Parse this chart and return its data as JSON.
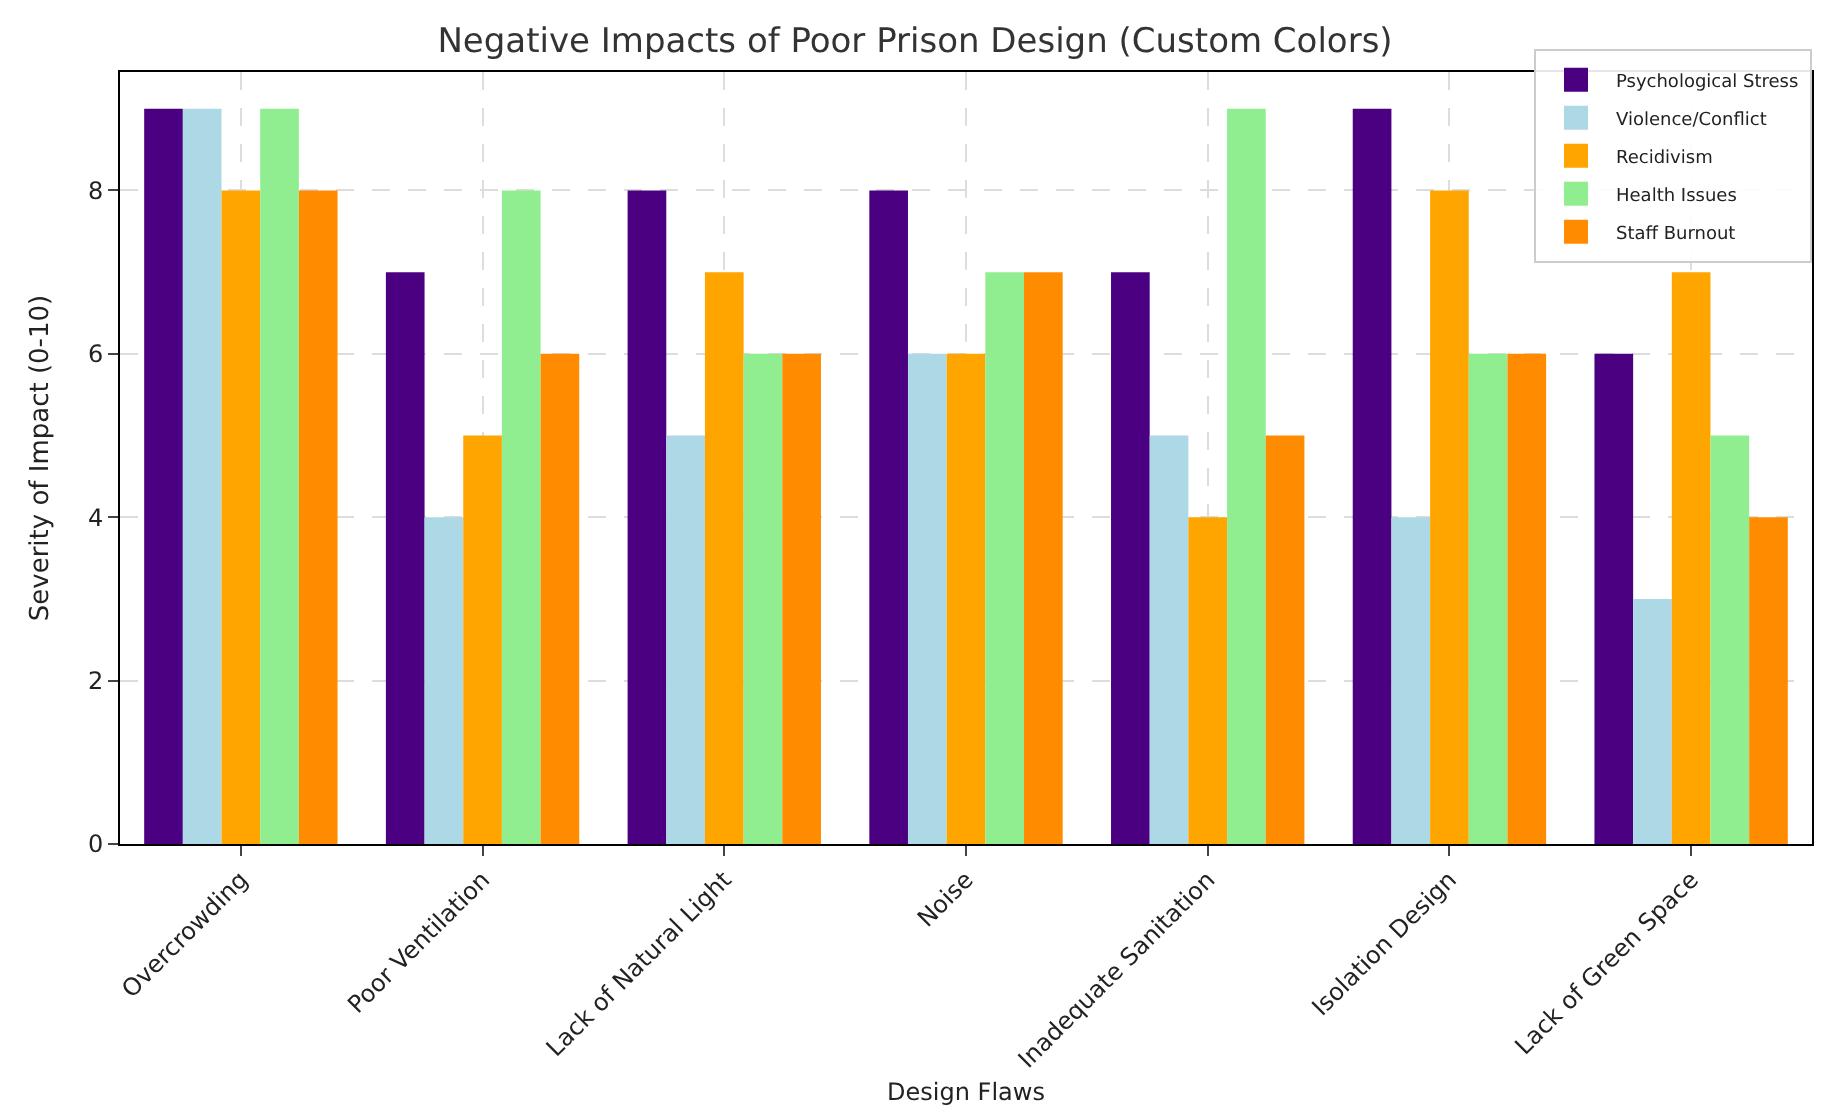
{
  "chart_data": {
    "type": "bar",
    "title": "Negative Impacts of Poor Prison Design (Custom Colors)",
    "xlabel": "Design Flaws",
    "ylabel": "Severity of Impact (0-10)",
    "categories": [
      "Overcrowding",
      "Poor Ventilation",
      "Lack of Natural Light",
      "Noise",
      "Inadequate Sanitation",
      "Isolation Design",
      "Lack of Green Space"
    ],
    "series": [
      {
        "name": "Psychological Stress",
        "color": "#4b0082",
        "values": [
          9,
          7,
          8,
          8,
          7,
          9,
          6
        ]
      },
      {
        "name": "Violence/Conflict",
        "color": "#add8e6",
        "values": [
          9,
          4,
          5,
          6,
          5,
          4,
          3
        ]
      },
      {
        "name": "Recidivism",
        "color": "#ffa500",
        "values": [
          8,
          5,
          7,
          6,
          4,
          8,
          7
        ]
      },
      {
        "name": "Health Issues",
        "color": "#90ee90",
        "values": [
          9,
          8,
          6,
          7,
          9,
          6,
          5
        ]
      },
      {
        "name": "Staff Burnout",
        "color": "#ff8c00",
        "values": [
          8,
          6,
          6,
          7,
          5,
          6,
          4
        ]
      }
    ],
    "ylim": [
      0,
      9.45
    ],
    "yticks": [
      0,
      2,
      4,
      6,
      8
    ],
    "grid": true,
    "legend": "top right"
  }
}
